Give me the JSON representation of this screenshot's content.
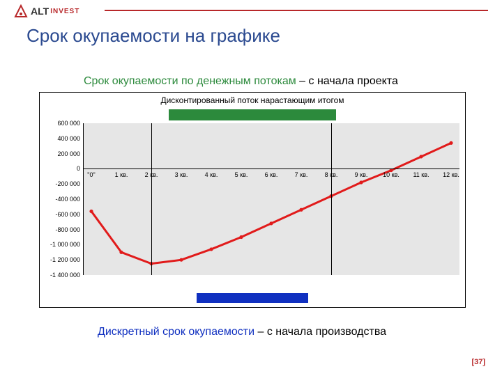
{
  "brand": {
    "name": "ALT",
    "sub": "INVEST",
    "name_color": "#333333",
    "sub_color": "#b8282a",
    "mark_color": "#b8282a",
    "rule_color": "#b8282a"
  },
  "slide": {
    "title": "Срок окупаемости на графике",
    "title_color": "#2b4a90",
    "page_number": "[37]",
    "page_number_color": "#b8282a"
  },
  "captions": {
    "top_green": "Срок окупаемости по денежным потокам",
    "top_black": " – с начала проекта",
    "bottom_blue": "Дискретный срок окупаемости",
    "bottom_black": " – с начала производства",
    "green_color": "#2c8a3c",
    "blue_color": "#1030c0"
  },
  "chart": {
    "title": "Дисконтированный поток нарастающим итогом",
    "background": "#e6e6e6",
    "axis_color": "#000000",
    "y": {
      "min": -1400000,
      "max": 600000,
      "step": 200000,
      "ticks": [
        600000,
        400000,
        200000,
        0,
        -200000,
        -400000,
        -600000,
        -800000,
        -1000000,
        -1200000,
        -1400000
      ],
      "labels": [
        "600 000",
        "400 000",
        "200 000",
        "0",
        "-200 000",
        "-400 000",
        "-600 000",
        "-800 000",
        "-1 000 000",
        "-1 200 000",
        "-1 400 000"
      ]
    },
    "x": {
      "labels": [
        "\"0\"",
        "1 кв.",
        "2 кв.",
        "3 кв.",
        "4 кв.",
        "5 кв.",
        "6 кв.",
        "7 кв.",
        "8 кв.",
        "9 кв.",
        "10 кв.",
        "11 кв.",
        "12 кв."
      ],
      "count": 13
    },
    "series": {
      "color": "#e11b1b",
      "line_width": 3,
      "marker_radius": 2.6,
      "values": [
        -560000,
        -1100000,
        -1250000,
        -1200000,
        -1060000,
        -900000,
        -720000,
        -540000,
        -360000,
        -180000,
        -20000,
        160000,
        340000
      ]
    },
    "markers": {
      "green_bar_color": "#2c8a3c",
      "blue_bar_color": "#1030c0",
      "vline_a_index": 2,
      "vline_b_index": 8
    }
  }
}
